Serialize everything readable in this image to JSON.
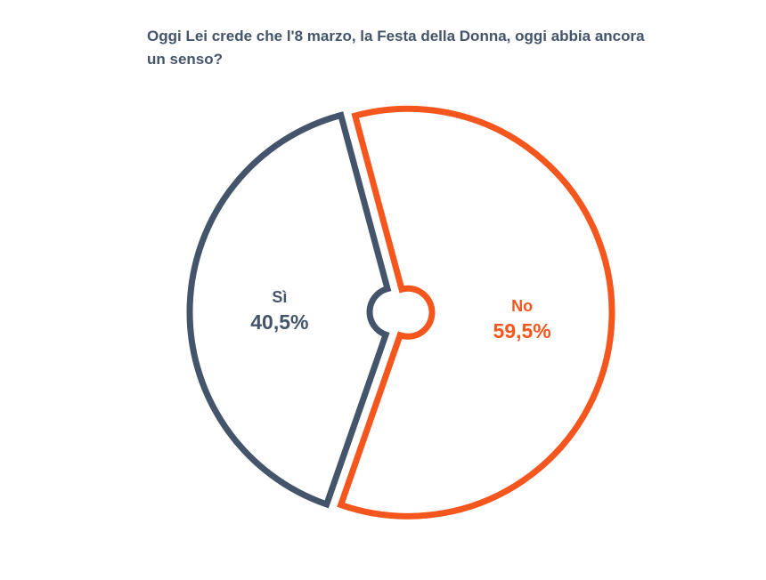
{
  "chart_data": {
    "type": "pie",
    "title": "Oggi Lei crede che l'8 marzo, la Festa della Donna, oggi abbia ancora un senso?",
    "categories": [
      "Sì",
      "No"
    ],
    "values": [
      40.5,
      59.5
    ],
    "value_labels": [
      "40,5%",
      "59,5%"
    ],
    "colors": [
      "#44546a",
      "#f4561d"
    ],
    "style": "exploded-outline-doughnut",
    "legend": "none"
  }
}
